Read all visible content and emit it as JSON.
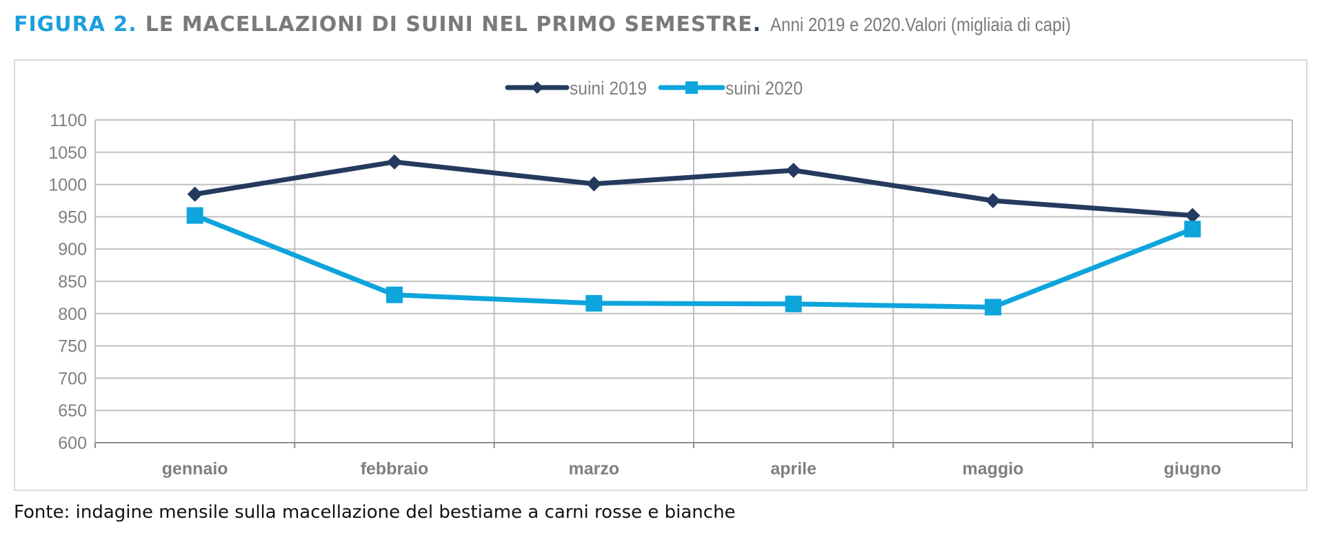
{
  "header": {
    "figure_label": "FIGURA 2.",
    "title": "LE MACELLAZIONI DI SUINI NEL PRIMO SEMESTRE",
    "title_dot": ".",
    "subtitle": "Anni 2019 e 2020.Valori (migliaia di capi)"
  },
  "footer": {
    "source": "Fonte: indagine mensile sulla macellazione del bestiame a carni rosse e bianche"
  },
  "colors": {
    "accent": "#1aa0dc",
    "series_2019": "#243a5e",
    "series_2020": "#0ea4dc",
    "grid": "#bfbfbf",
    "text": "#7f7f7f"
  },
  "chart_data": {
    "type": "line",
    "title": "",
    "xlabel": "",
    "ylabel": "",
    "categories": [
      "gennaio",
      "febbraio",
      "marzo",
      "aprile",
      "maggio",
      "giugno"
    ],
    "series": [
      {
        "name": "suini 2019",
        "marker": "diamond",
        "values": [
          985,
          1035,
          1001,
          1022,
          975,
          952
        ]
      },
      {
        "name": "suini 2020",
        "marker": "square",
        "values": [
          952,
          829,
          816,
          815,
          810,
          931
        ]
      }
    ],
    "ylim": [
      600,
      1100
    ],
    "yticks": [
      600,
      650,
      700,
      750,
      800,
      850,
      900,
      950,
      1000,
      1050,
      1100
    ],
    "grid": true,
    "legend": "top-center"
  }
}
